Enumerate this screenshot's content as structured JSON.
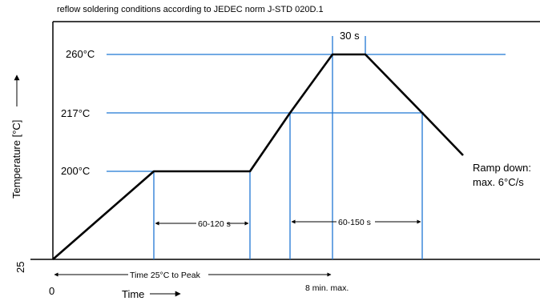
{
  "title": "reflow soldering conditions according to JEDEC norm J-STD 020D.1",
  "y_axis_label": "Temperature [°C]",
  "x_axis_label": "Time",
  "temp_labels": {
    "t260": "260°C",
    "t217": "217°C",
    "t200": "200°C",
    "t25": "25"
  },
  "x_origin_label": "0",
  "peak_duration_label": "30 s",
  "soak_duration_label": "60-120 s",
  "above_liquidus_label": "60-150 s",
  "time_to_peak_label": "Time 25°C to Peak",
  "max_time_label": "8 min. max.",
  "ramp_down_line1": "Ramp down:",
  "ramp_down_line2": "max. 6°C/s",
  "colors": {
    "guide_lines": "#1f77d4",
    "profile": "#000000"
  },
  "profile_points": [
    {
      "time_marker": "0",
      "temp": 25
    },
    {
      "time_marker": "soak start",
      "temp": 200
    },
    {
      "time_marker": "soak end",
      "temp": 200
    },
    {
      "time_marker": "liquidus up",
      "temp": 217
    },
    {
      "time_marker": "peak start",
      "temp": 260
    },
    {
      "time_marker": "peak end",
      "temp": 260
    },
    {
      "time_marker": "liquidus down",
      "temp": 217
    }
  ]
}
